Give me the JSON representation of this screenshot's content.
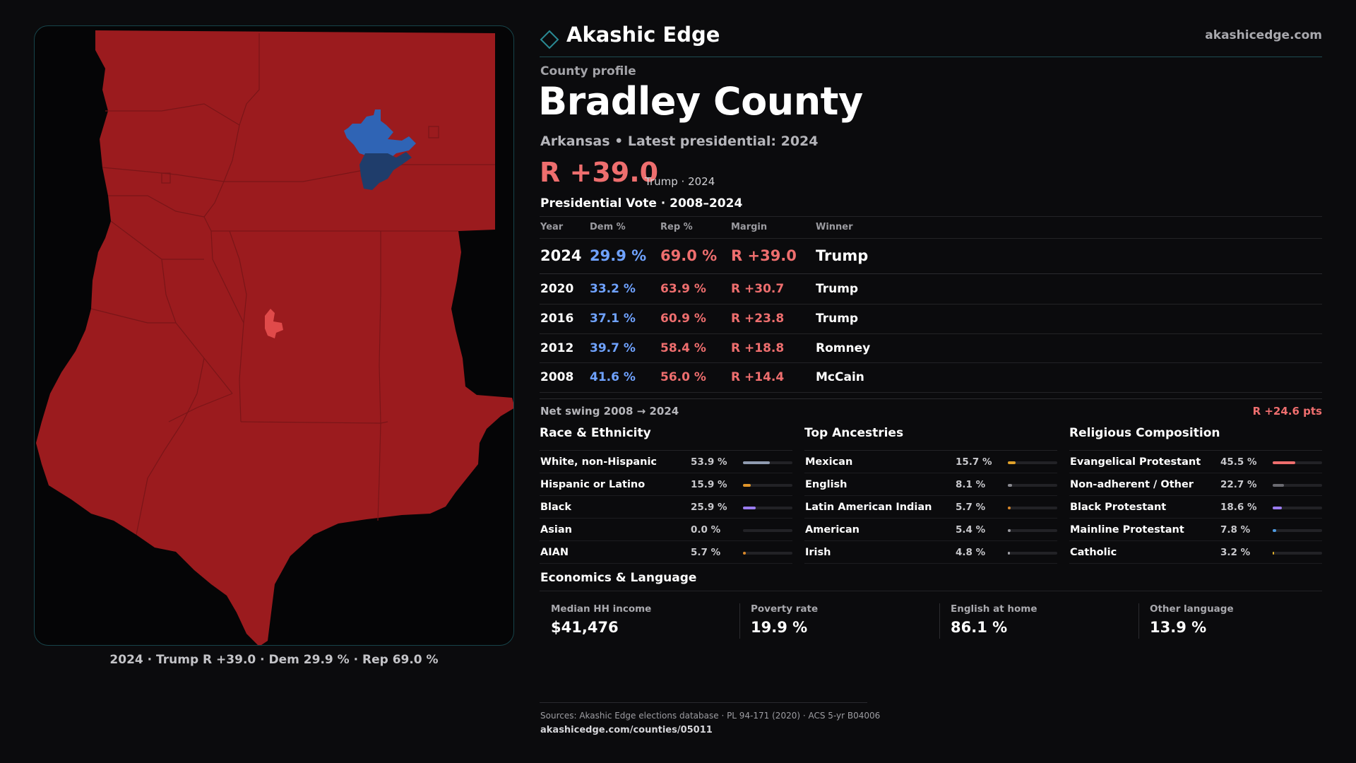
{
  "brand": {
    "name": "Akashic Edge",
    "url": "akashicedge.com",
    "accent": "#2a8a94",
    "icon": "diamond-icon"
  },
  "profile": {
    "kicker": "County profile",
    "county": "Bradley County",
    "subtitle": "Arkansas • Latest presidential: 2024",
    "headline_margin": "R +39.0",
    "headline_note": "Trump · 2024"
  },
  "colors": {
    "dem": "#6fa2ff",
    "rep": "#ee6e6e",
    "map_rep": "#9b1b1e",
    "map_dem": "#2f64b5",
    "map_dem_dark": "#1f3d6b",
    "map_rep_light": "#e04a4a"
  },
  "votes": {
    "title": "Presidential Vote · 2008–2024",
    "headers": [
      "Year",
      "Dem %",
      "Rep %",
      "Margin",
      "Winner"
    ],
    "rows": [
      {
        "year": "2024",
        "dem": "29.9 %",
        "rep": "69.0 %",
        "margin": "R +39.0",
        "winner": "Trump"
      },
      {
        "year": "2020",
        "dem": "33.2 %",
        "rep": "63.9 %",
        "margin": "R +30.7",
        "winner": "Trump"
      },
      {
        "year": "2016",
        "dem": "37.1 %",
        "rep": "60.9 %",
        "margin": "R +23.8",
        "winner": "Trump"
      },
      {
        "year": "2012",
        "dem": "39.7 %",
        "rep": "58.4 %",
        "margin": "R +18.8",
        "winner": "Romney"
      },
      {
        "year": "2008",
        "dem": "41.6 %",
        "rep": "56.0 %",
        "margin": "R +14.4",
        "winner": "McCain"
      }
    ],
    "swing_label": "Net swing 2008 → 2024",
    "swing_value": "R +24.6 pts"
  },
  "demographics": [
    {
      "title": "Race & Ethnicity",
      "rows": [
        {
          "label": "White, non-Hispanic",
          "value": "53.9 %",
          "fraction": 0.539,
          "color": "#8f9bb0"
        },
        {
          "label": "Hispanic or Latino",
          "value": "15.9 %",
          "fraction": 0.159,
          "color": "#e0952a"
        },
        {
          "label": "Black",
          "value": "25.9 %",
          "fraction": 0.259,
          "color": "#9b7cf0"
        },
        {
          "label": "Asian",
          "value": "0.0 %",
          "fraction": 0.0,
          "color": "#3fb0a0"
        },
        {
          "label": "AIAN",
          "value": "5.7 %",
          "fraction": 0.057,
          "color": "#d9882a"
        }
      ]
    },
    {
      "title": "Top Ancestries",
      "rows": [
        {
          "label": "Mexican",
          "value": "15.7 %",
          "fraction": 0.157,
          "color": "#e0a12a"
        },
        {
          "label": "English",
          "value": "8.1 %",
          "fraction": 0.081,
          "color": "#8a8a90"
        },
        {
          "label": "Latin American Indian",
          "value": "5.7 %",
          "fraction": 0.057,
          "color": "#d9882a"
        },
        {
          "label": "American",
          "value": "5.4 %",
          "fraction": 0.054,
          "color": "#9a9aa0"
        },
        {
          "label": "Irish",
          "value": "4.8 %",
          "fraction": 0.048,
          "color": "#a0a0a6"
        }
      ]
    },
    {
      "title": "Religious Composition",
      "rows": [
        {
          "label": "Evangelical Protestant",
          "value": "45.5 %",
          "fraction": 0.455,
          "color": "#ee6e6e"
        },
        {
          "label": "Non-adherent / Other",
          "value": "22.7 %",
          "fraction": 0.227,
          "color": "#6a6a70"
        },
        {
          "label": "Black Protestant",
          "value": "18.6 %",
          "fraction": 0.186,
          "color": "#9b7cf0"
        },
        {
          "label": "Mainline Protestant",
          "value": "7.8 %",
          "fraction": 0.078,
          "color": "#4f9ae0"
        },
        {
          "label": "Catholic",
          "value": "3.2 %",
          "fraction": 0.032,
          "color": "#e0b02a"
        }
      ]
    }
  ],
  "economics": {
    "title": "Economics & Language",
    "cards": [
      {
        "label": "Median HH income",
        "value": "$41,476"
      },
      {
        "label": "Poverty rate",
        "value": "19.9 %"
      },
      {
        "label": "English at home",
        "value": "86.1 %"
      },
      {
        "label": "Other language",
        "value": "13.9 %"
      }
    ]
  },
  "map": {
    "caption": "2024 · Trump R +39.0 · Dem 29.9 % · Rep 69.0 %"
  },
  "footer": {
    "sources": "Sources: Akashic Edge elections database · PL 94-171 (2020) · ACS 5-yr B04006",
    "url": "akashicedge.com/counties/05011"
  }
}
